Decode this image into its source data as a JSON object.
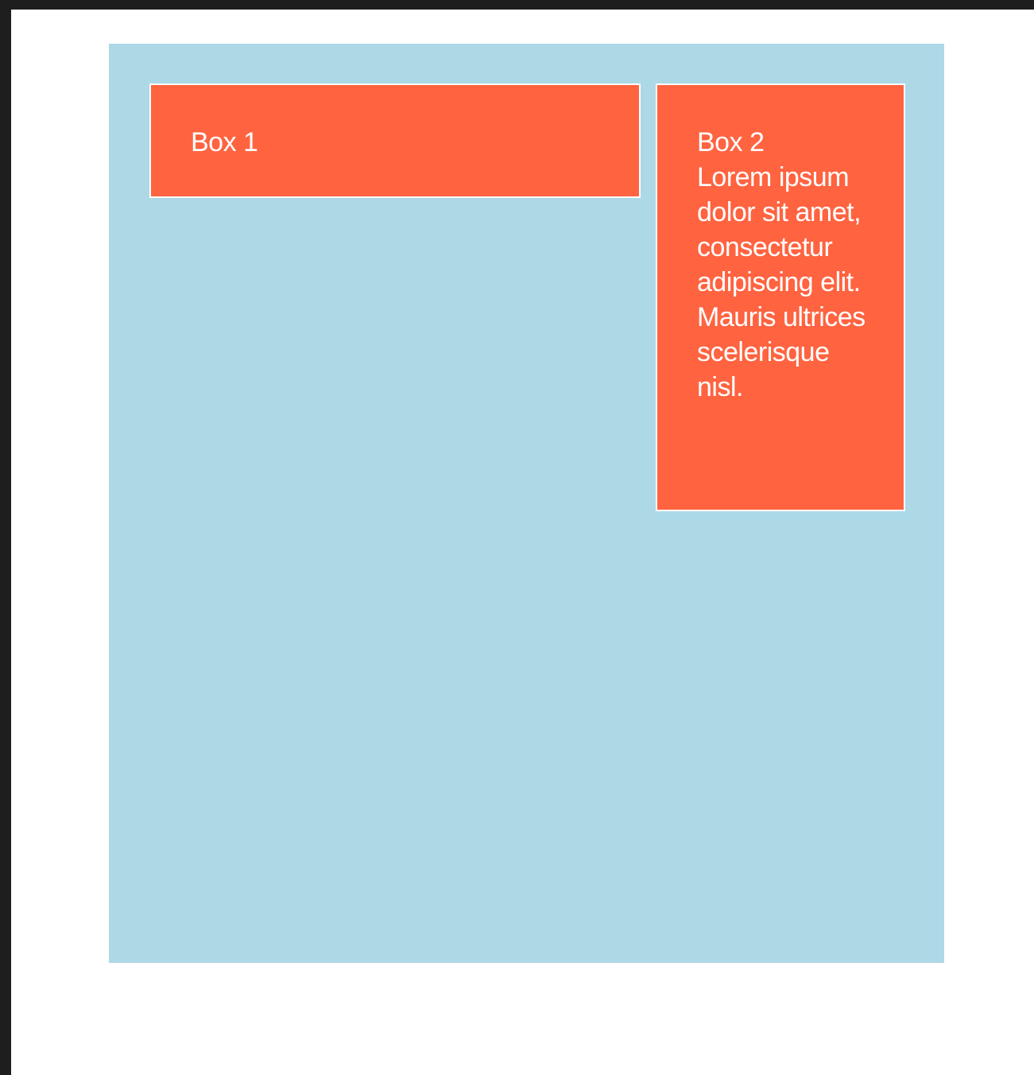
{
  "colors": {
    "container_background": "#add8e6",
    "box_background": "#ff6340",
    "box_border": "#ffffff",
    "text": "#ffffff",
    "chrome": "#1e1e1e"
  },
  "box1": {
    "title": "Box 1"
  },
  "box2": {
    "title": "Box 2",
    "body": "Lorem ipsum dolor sit amet, consectetur adipiscing elit. Mauris ultrices scelerisque nisl."
  }
}
